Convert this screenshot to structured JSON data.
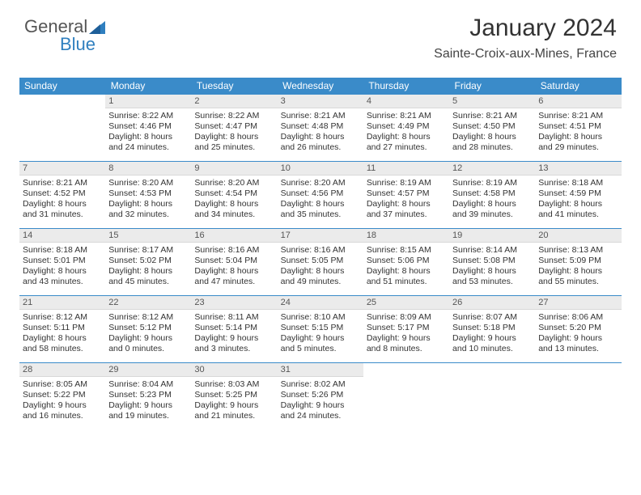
{
  "brand": {
    "name1": "General",
    "name2": "Blue",
    "accent": "#2f7fbf"
  },
  "calendar": {
    "month_title": "January 2024",
    "location": "Sainte-Croix-aux-Mines, France",
    "header_bg": "#3a8bc9",
    "header_fg": "#ffffff",
    "daynum_bg": "#ebebeb",
    "border_color": "#3a8bc9",
    "day_headers": [
      "Sunday",
      "Monday",
      "Tuesday",
      "Wednesday",
      "Thursday",
      "Friday",
      "Saturday"
    ],
    "weeks": [
      [
        {
          "n": "",
          "sunrise": "",
          "sunset": "",
          "daylight": ""
        },
        {
          "n": "1",
          "sunrise": "Sunrise: 8:22 AM",
          "sunset": "Sunset: 4:46 PM",
          "daylight": "Daylight: 8 hours and 24 minutes."
        },
        {
          "n": "2",
          "sunrise": "Sunrise: 8:22 AM",
          "sunset": "Sunset: 4:47 PM",
          "daylight": "Daylight: 8 hours and 25 minutes."
        },
        {
          "n": "3",
          "sunrise": "Sunrise: 8:21 AM",
          "sunset": "Sunset: 4:48 PM",
          "daylight": "Daylight: 8 hours and 26 minutes."
        },
        {
          "n": "4",
          "sunrise": "Sunrise: 8:21 AM",
          "sunset": "Sunset: 4:49 PM",
          "daylight": "Daylight: 8 hours and 27 minutes."
        },
        {
          "n": "5",
          "sunrise": "Sunrise: 8:21 AM",
          "sunset": "Sunset: 4:50 PM",
          "daylight": "Daylight: 8 hours and 28 minutes."
        },
        {
          "n": "6",
          "sunrise": "Sunrise: 8:21 AM",
          "sunset": "Sunset: 4:51 PM",
          "daylight": "Daylight: 8 hours and 29 minutes."
        }
      ],
      [
        {
          "n": "7",
          "sunrise": "Sunrise: 8:21 AM",
          "sunset": "Sunset: 4:52 PM",
          "daylight": "Daylight: 8 hours and 31 minutes."
        },
        {
          "n": "8",
          "sunrise": "Sunrise: 8:20 AM",
          "sunset": "Sunset: 4:53 PM",
          "daylight": "Daylight: 8 hours and 32 minutes."
        },
        {
          "n": "9",
          "sunrise": "Sunrise: 8:20 AM",
          "sunset": "Sunset: 4:54 PM",
          "daylight": "Daylight: 8 hours and 34 minutes."
        },
        {
          "n": "10",
          "sunrise": "Sunrise: 8:20 AM",
          "sunset": "Sunset: 4:56 PM",
          "daylight": "Daylight: 8 hours and 35 minutes."
        },
        {
          "n": "11",
          "sunrise": "Sunrise: 8:19 AM",
          "sunset": "Sunset: 4:57 PM",
          "daylight": "Daylight: 8 hours and 37 minutes."
        },
        {
          "n": "12",
          "sunrise": "Sunrise: 8:19 AM",
          "sunset": "Sunset: 4:58 PM",
          "daylight": "Daylight: 8 hours and 39 minutes."
        },
        {
          "n": "13",
          "sunrise": "Sunrise: 8:18 AM",
          "sunset": "Sunset: 4:59 PM",
          "daylight": "Daylight: 8 hours and 41 minutes."
        }
      ],
      [
        {
          "n": "14",
          "sunrise": "Sunrise: 8:18 AM",
          "sunset": "Sunset: 5:01 PM",
          "daylight": "Daylight: 8 hours and 43 minutes."
        },
        {
          "n": "15",
          "sunrise": "Sunrise: 8:17 AM",
          "sunset": "Sunset: 5:02 PM",
          "daylight": "Daylight: 8 hours and 45 minutes."
        },
        {
          "n": "16",
          "sunrise": "Sunrise: 8:16 AM",
          "sunset": "Sunset: 5:04 PM",
          "daylight": "Daylight: 8 hours and 47 minutes."
        },
        {
          "n": "17",
          "sunrise": "Sunrise: 8:16 AM",
          "sunset": "Sunset: 5:05 PM",
          "daylight": "Daylight: 8 hours and 49 minutes."
        },
        {
          "n": "18",
          "sunrise": "Sunrise: 8:15 AM",
          "sunset": "Sunset: 5:06 PM",
          "daylight": "Daylight: 8 hours and 51 minutes."
        },
        {
          "n": "19",
          "sunrise": "Sunrise: 8:14 AM",
          "sunset": "Sunset: 5:08 PM",
          "daylight": "Daylight: 8 hours and 53 minutes."
        },
        {
          "n": "20",
          "sunrise": "Sunrise: 8:13 AM",
          "sunset": "Sunset: 5:09 PM",
          "daylight": "Daylight: 8 hours and 55 minutes."
        }
      ],
      [
        {
          "n": "21",
          "sunrise": "Sunrise: 8:12 AM",
          "sunset": "Sunset: 5:11 PM",
          "daylight": "Daylight: 8 hours and 58 minutes."
        },
        {
          "n": "22",
          "sunrise": "Sunrise: 8:12 AM",
          "sunset": "Sunset: 5:12 PM",
          "daylight": "Daylight: 9 hours and 0 minutes."
        },
        {
          "n": "23",
          "sunrise": "Sunrise: 8:11 AM",
          "sunset": "Sunset: 5:14 PM",
          "daylight": "Daylight: 9 hours and 3 minutes."
        },
        {
          "n": "24",
          "sunrise": "Sunrise: 8:10 AM",
          "sunset": "Sunset: 5:15 PM",
          "daylight": "Daylight: 9 hours and 5 minutes."
        },
        {
          "n": "25",
          "sunrise": "Sunrise: 8:09 AM",
          "sunset": "Sunset: 5:17 PM",
          "daylight": "Daylight: 9 hours and 8 minutes."
        },
        {
          "n": "26",
          "sunrise": "Sunrise: 8:07 AM",
          "sunset": "Sunset: 5:18 PM",
          "daylight": "Daylight: 9 hours and 10 minutes."
        },
        {
          "n": "27",
          "sunrise": "Sunrise: 8:06 AM",
          "sunset": "Sunset: 5:20 PM",
          "daylight": "Daylight: 9 hours and 13 minutes."
        }
      ],
      [
        {
          "n": "28",
          "sunrise": "Sunrise: 8:05 AM",
          "sunset": "Sunset: 5:22 PM",
          "daylight": "Daylight: 9 hours and 16 minutes."
        },
        {
          "n": "29",
          "sunrise": "Sunrise: 8:04 AM",
          "sunset": "Sunset: 5:23 PM",
          "daylight": "Daylight: 9 hours and 19 minutes."
        },
        {
          "n": "30",
          "sunrise": "Sunrise: 8:03 AM",
          "sunset": "Sunset: 5:25 PM",
          "daylight": "Daylight: 9 hours and 21 minutes."
        },
        {
          "n": "31",
          "sunrise": "Sunrise: 8:02 AM",
          "sunset": "Sunset: 5:26 PM",
          "daylight": "Daylight: 9 hours and 24 minutes."
        },
        {
          "n": "",
          "sunrise": "",
          "sunset": "",
          "daylight": ""
        },
        {
          "n": "",
          "sunrise": "",
          "sunset": "",
          "daylight": ""
        },
        {
          "n": "",
          "sunrise": "",
          "sunset": "",
          "daylight": ""
        }
      ]
    ]
  }
}
